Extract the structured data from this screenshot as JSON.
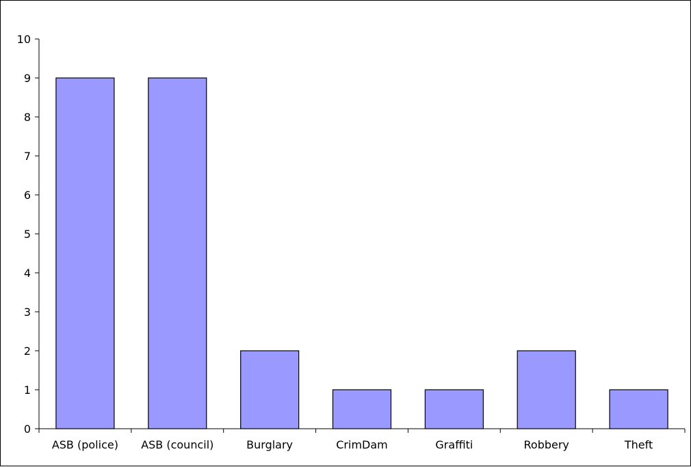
{
  "chart_data": {
    "type": "bar",
    "title": "",
    "xlabel": "",
    "ylabel": "",
    "categories": [
      "ASB (police)",
      "ASB (council)",
      "Burglary",
      "CrimDam",
      "Graffiti",
      "Robbery",
      "Theft"
    ],
    "values": [
      9,
      9,
      2,
      1,
      1,
      2,
      1
    ],
    "ylim": [
      0,
      10
    ],
    "yticks": [
      0,
      1,
      2,
      3,
      4,
      5,
      6,
      7,
      8,
      9,
      10
    ],
    "grid": false,
    "legend": "none",
    "bar_color": "#9999FF",
    "bar_edge_color": "#000000"
  }
}
